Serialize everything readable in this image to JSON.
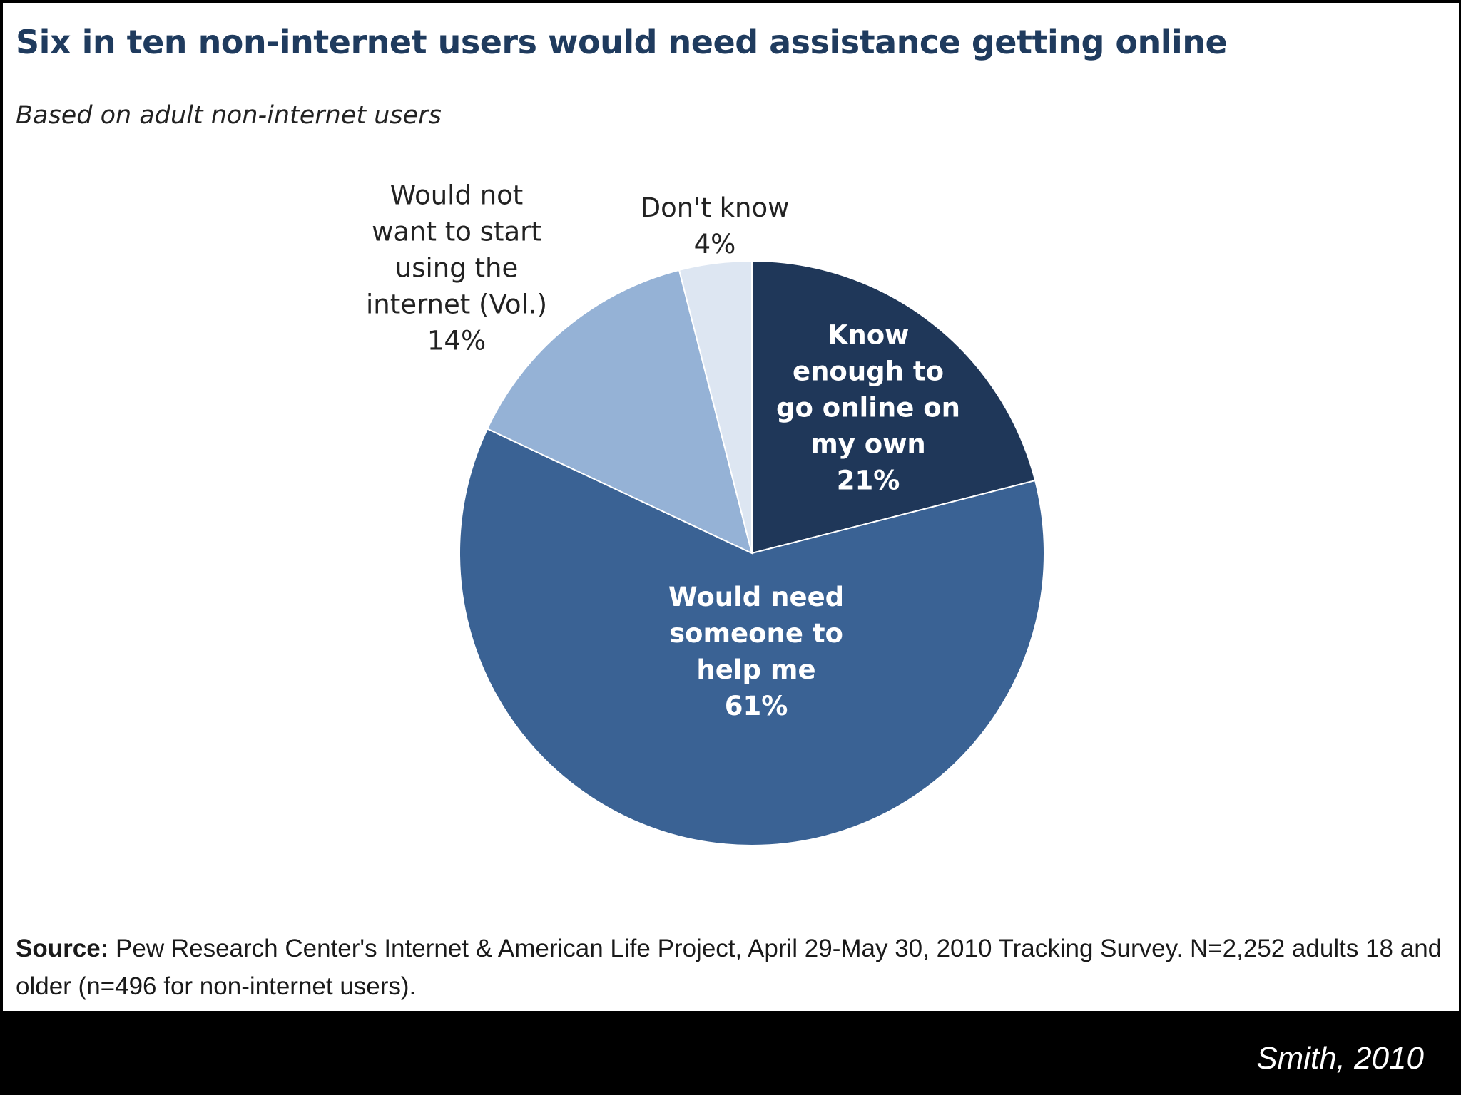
{
  "chart_data": {
    "type": "pie",
    "title": "Six in ten non-internet users would need assistance getting online",
    "subtitle": "Based on  adult non-internet users",
    "slices": [
      {
        "label_lines": [
          "Know",
          "enough to",
          "go online  on",
          "my own"
        ],
        "value": 21,
        "value_label": "21%",
        "color": "#1f3759",
        "label_position": "inside"
      },
      {
        "label_lines": [
          "Would need",
          "someone to",
          "help me"
        ],
        "value": 61,
        "value_label": "61%",
        "color": "#3a6294",
        "label_position": "inside"
      },
      {
        "label_lines": [
          "Would not",
          "want to start",
          "using the",
          "internet (Vol.)"
        ],
        "value": 14,
        "value_label": "14%",
        "color": "#95b2d6",
        "label_position": "outside"
      },
      {
        "label_lines": [
          "Don't know"
        ],
        "value": 4,
        "value_label": "4%",
        "color": "#dde6f2",
        "label_position": "outside"
      }
    ]
  },
  "source": {
    "prefix": "Source:",
    "text": " Pew Research Center's Internet & American Life Project, April 29-May 30, 2010 Tracking Survey. N=2,252 adults 18 and older (n=496 for non-internet users)."
  },
  "footer": {
    "credit": "Smith, 2010"
  }
}
